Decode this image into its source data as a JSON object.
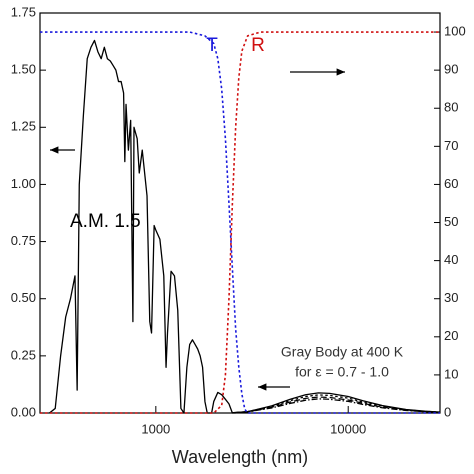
{
  "chart_data": {
    "type": "line",
    "x_label": "Wavelength (nm)",
    "xlog": true,
    "xlim": [
      250,
      30000
    ],
    "xticks": [
      1000,
      10000
    ],
    "ylim": [
      0,
      1.75
    ],
    "yticks": [
      {
        "value": 0,
        "label": "0.00"
      },
      {
        "value": 0.25,
        "label": "0.25"
      },
      {
        "value": 0.5,
        "label": "0.50"
      },
      {
        "value": 0.75,
        "label": "0.75"
      },
      {
        "value": 1,
        "label": "1.00"
      },
      {
        "value": 1.25,
        "label": "1.25"
      },
      {
        "value": 1.5,
        "label": "1.50"
      },
      {
        "value": 1.75,
        "label": "1.75"
      }
    ],
    "y2lim": [
      0,
      105
    ],
    "y2ticks": [
      0,
      10,
      20,
      30,
      40,
      50,
      60,
      70,
      80,
      90,
      100
    ],
    "annotations": [
      {
        "text": "A.M. 1.5",
        "color": "#000000"
      },
      {
        "text": "T",
        "color": "#1a1adc"
      },
      {
        "text": "R",
        "color": "#d01010"
      },
      {
        "text": "Gray Body at 400 K",
        "color": "#333333"
      },
      {
        "text": "for ε = 0.7 - 1.0",
        "color": "#333333"
      }
    ],
    "series": [
      {
        "color": "#000000",
        "dash": "solid",
        "x": [
          280,
          300,
          320,
          340,
          360,
          380,
          390,
          400,
          420,
          440,
          460,
          480,
          500,
          520,
          540,
          560,
          580,
          600,
          620,
          640,
          660,
          680,
          690,
          700,
          720,
          740,
          760,
          770,
          800,
          820,
          850,
          900,
          930,
          950,
          980,
          1000,
          1050,
          1100,
          1130,
          1150,
          1200,
          1250,
          1300,
          1350,
          1400,
          1450,
          1500,
          1550,
          1600,
          1650,
          1700,
          1750,
          1800,
          1850,
          1950,
          2000,
          2100,
          2200,
          2300,
          2400,
          2500,
          2600
        ],
        "values": [
          0,
          0.02,
          0.25,
          0.42,
          0.5,
          0.6,
          0.1,
          1.0,
          1.3,
          1.55,
          1.6,
          1.63,
          1.58,
          1.55,
          1.6,
          1.55,
          1.54,
          1.52,
          1.5,
          1.45,
          1.45,
          1.4,
          1.1,
          1.35,
          1.15,
          1.28,
          0.4,
          1.25,
          1.2,
          1.05,
          1.15,
          0.95,
          0.4,
          0.35,
          0.82,
          0.8,
          0.76,
          0.6,
          0.2,
          0.35,
          0.62,
          0.6,
          0.45,
          0.02,
          0,
          0.2,
          0.3,
          0.32,
          0.3,
          0.28,
          0.25,
          0.2,
          0.05,
          0,
          0,
          0.05,
          0.09,
          0.08,
          0.06,
          0.04,
          0,
          0
        ]
      },
      {
        "color": "#000000",
        "dash": "solid",
        "x": [
          2500,
          3000,
          4000,
          5000,
          6000,
          7000,
          8000,
          10000,
          12000,
          15000,
          20000,
          25000,
          30000
        ],
        "values": [
          0.001,
          0.006,
          0.031,
          0.06,
          0.08,
          0.088,
          0.086,
          0.072,
          0.053,
          0.033,
          0.015,
          0.008,
          0.004
        ]
      },
      {
        "color": "#000000",
        "dash": "dotted",
        "x": [
          2500,
          3000,
          4000,
          5000,
          6000,
          7000,
          8000,
          10000,
          12000,
          15000,
          20000,
          25000,
          30000
        ],
        "values": [
          0.001,
          0.006,
          0.028,
          0.054,
          0.072,
          0.079,
          0.077,
          0.065,
          0.047,
          0.03,
          0.014,
          0.007,
          0.004
        ]
      },
      {
        "color": "#000000",
        "dash": "dashed",
        "x": [
          2500,
          3000,
          4000,
          5000,
          6000,
          7000,
          8000,
          10000,
          12000,
          15000,
          20000,
          25000,
          30000
        ],
        "values": [
          0.001,
          0.005,
          0.025,
          0.048,
          0.064,
          0.07,
          0.068,
          0.057,
          0.042,
          0.026,
          0.012,
          0.006,
          0.004
        ]
      },
      {
        "color": "#000000",
        "dash": "dashdot",
        "x": [
          2500,
          3000,
          4000,
          5000,
          6000,
          7000,
          8000,
          10000,
          12000,
          15000,
          20000,
          25000,
          30000
        ],
        "values": [
          0.001,
          0.005,
          0.022,
          0.042,
          0.056,
          0.062,
          0.06,
          0.051,
          0.037,
          0.023,
          0.011,
          0.006,
          0.003
        ]
      },
      {
        "color": "#1a1adc",
        "dash": "dotted",
        "axis": "y2",
        "x": [
          250,
          1000,
          1500,
          1800,
          2000,
          2100,
          2200,
          2300,
          2400,
          2500,
          2600,
          2700,
          2800,
          2900,
          3000,
          30000
        ],
        "values": [
          100,
          100,
          100,
          99,
          97,
          93,
          85,
          72,
          55,
          38,
          22,
          12,
          5,
          1,
          0,
          0
        ]
      },
      {
        "color": "#d01010",
        "dash": "dotted",
        "axis": "y2",
        "x": [
          250,
          2000,
          2200,
          2300,
          2400,
          2500,
          2600,
          2700,
          2800,
          3000,
          3500,
          30000
        ],
        "values": [
          0,
          0,
          2,
          10,
          30,
          55,
          75,
          88,
          95,
          99,
          100,
          100
        ]
      }
    ]
  }
}
